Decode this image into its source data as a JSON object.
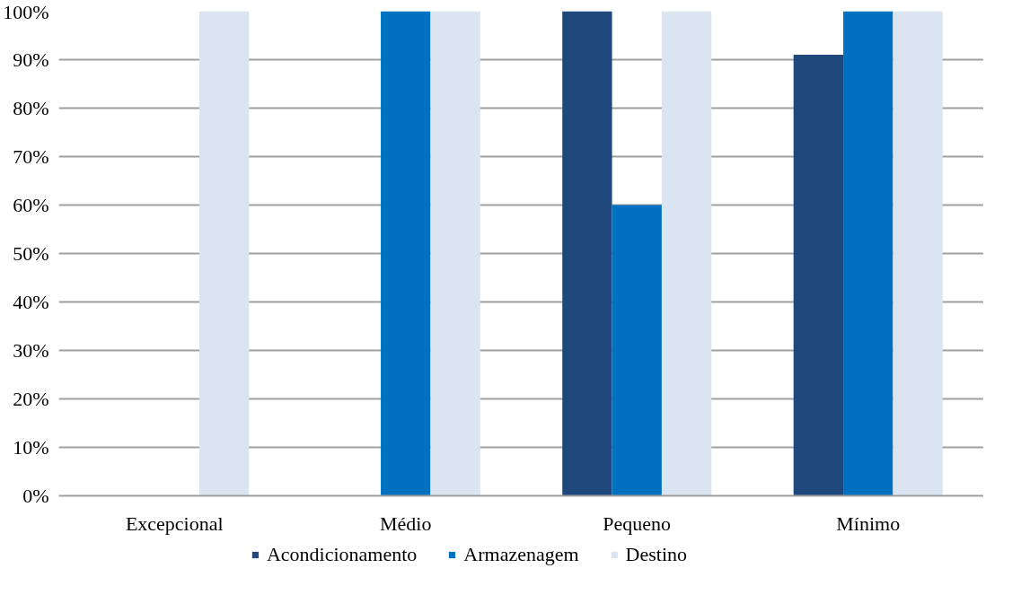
{
  "chart_data": {
    "type": "bar",
    "categories": [
      "Excepcional",
      "Médio",
      "Pequeno",
      "Mínimo"
    ],
    "series": [
      {
        "name": "Acondicionamento",
        "color": "#1f497d",
        "values": [
          0,
          0,
          100,
          91
        ]
      },
      {
        "name": "Armazenagem",
        "color": "#0070c0",
        "values": [
          0,
          100,
          60,
          100
        ]
      },
      {
        "name": "Destino",
        "color": "#dbe5f1",
        "values": [
          100,
          100,
          100,
          100
        ]
      }
    ],
    "ylim": [
      0,
      100
    ],
    "yticks": [
      {
        "value": 0,
        "label": "0%"
      },
      {
        "value": 10,
        "label": "10%"
      },
      {
        "value": 20,
        "label": "20%"
      },
      {
        "value": 30,
        "label": "30%"
      },
      {
        "value": 40,
        "label": "40%"
      },
      {
        "value": 50,
        "label": "50%"
      },
      {
        "value": 60,
        "label": "60%"
      },
      {
        "value": 70,
        "label": "70%"
      },
      {
        "value": 80,
        "label": "80%"
      },
      {
        "value": 90,
        "label": "90%"
      },
      {
        "value": 100,
        "label": "100%"
      }
    ],
    "grid": "y",
    "legend": "bottom"
  }
}
